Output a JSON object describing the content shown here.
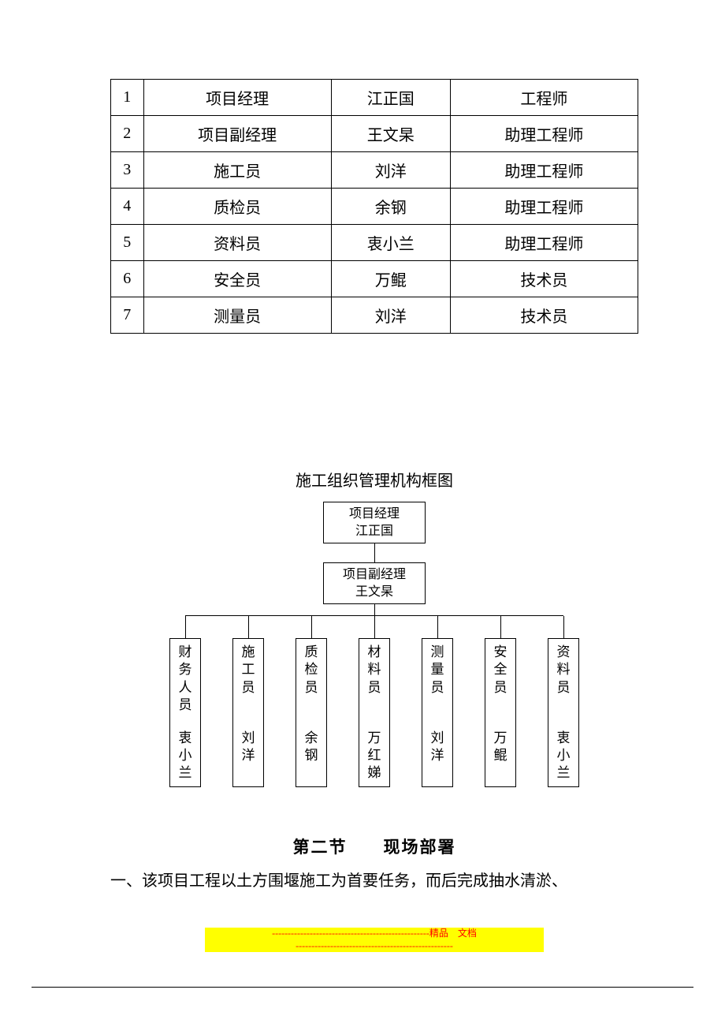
{
  "table": {
    "rows": [
      [
        "1",
        "项目经理",
        "江正国",
        "工程师"
      ],
      [
        "2",
        "项目副经理",
        "王文杲",
        "助理工程师"
      ],
      [
        "3",
        "施工员",
        "刘洋",
        "助理工程师"
      ],
      [
        "4",
        "质检员",
        "余钢",
        "助理工程师"
      ],
      [
        "5",
        "资料员",
        "衷小兰",
        "助理工程师"
      ],
      [
        "6",
        "安全员",
        "万鲲",
        "技术员"
      ],
      [
        "7",
        "测量员",
        "刘洋",
        "技术员"
      ]
    ]
  },
  "chart": {
    "title": "施工组织管理机构框图",
    "top": {
      "role": "项目经理",
      "name": "江正国"
    },
    "mid": {
      "role": "项目副经理",
      "name": "王文杲"
    },
    "leaves": [
      {
        "role": "财务人员",
        "name": "衷小兰"
      },
      {
        "role": "施工员",
        "name": "刘洋"
      },
      {
        "role": "质检员",
        "name": "余钢"
      },
      {
        "role": "材料员",
        "name": "万红娣"
      },
      {
        "role": "测量员",
        "name": "刘洋"
      },
      {
        "role": "安全员",
        "name": "万鲲"
      },
      {
        "role": "资料员",
        "name": "衷小兰"
      }
    ]
  },
  "section": {
    "heading": "第二节  现场部署",
    "body": "一、该项目工程以土方围堰施工为首要任务，而后完成抽水清淤、"
  },
  "footer": {
    "dashes": "--------------------------------------------------",
    "label": "精品 文档"
  }
}
